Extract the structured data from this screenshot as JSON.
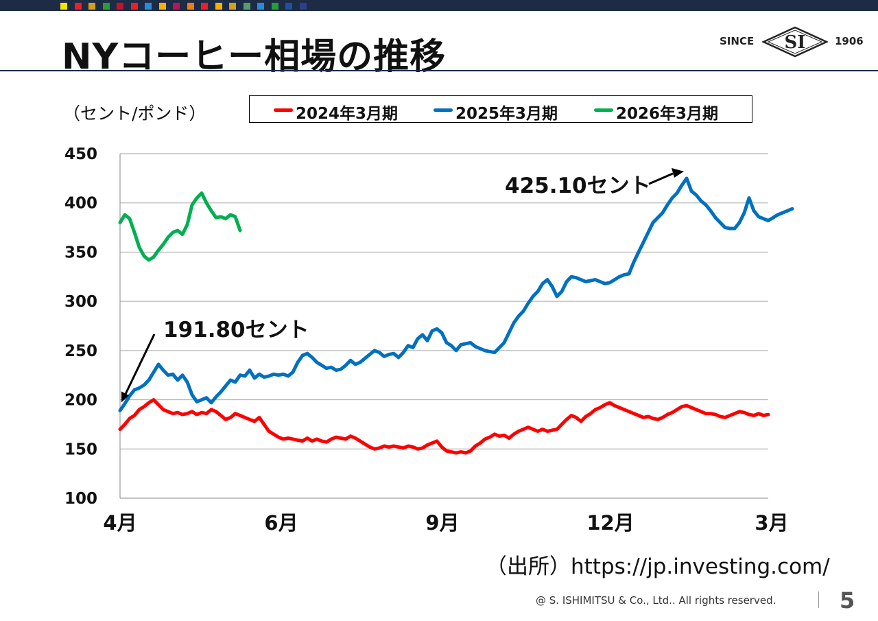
{
  "header": {
    "title": "NYコーヒー相場の推移",
    "swatches": [
      "#f2e600",
      "#e8202a",
      "#d4a017",
      "#2a9d3a",
      "#c8102e",
      "#e8202a",
      "#2b8ad8",
      "#f2b300",
      "#b0185a",
      "#ef7d16",
      "#e8202a",
      "#f2b300",
      "#d4a017",
      "#5b9a6a",
      "#2b8ad8",
      "#2a9d3a",
      "#1f4fa0",
      "#2b3f8a"
    ]
  },
  "logo": {
    "since": "SINCE",
    "mark": "SI",
    "year": "1906"
  },
  "chart_data": {
    "type": "line",
    "unit_label": "（セント/ポンド）",
    "ylim": [
      100,
      450
    ],
    "yticks": [
      "100",
      "150",
      "200",
      "250",
      "300",
      "350",
      "400",
      "450"
    ],
    "xticks": [
      "4月",
      "6月",
      "9月",
      "12月",
      "3月"
    ],
    "grid": true,
    "legend": "top",
    "series": [
      {
        "name": "2024年3月期",
        "color": "#ff0000",
        "values": [
          170,
          175,
          181,
          184,
          190,
          193,
          197,
          200,
          195,
          190,
          188,
          186,
          187,
          185,
          186,
          188,
          185,
          187,
          186,
          190,
          188,
          184,
          180,
          182,
          186,
          184,
          182,
          180,
          178,
          182,
          175,
          168,
          165,
          162,
          160,
          161,
          160,
          159,
          158,
          161,
          158,
          160,
          158,
          157,
          160,
          162,
          161,
          160,
          163,
          161,
          158,
          155,
          152,
          150,
          151,
          153,
          152,
          153,
          152,
          151,
          153,
          152,
          150,
          151,
          154,
          156,
          158,
          152,
          148,
          147,
          146,
          147,
          146,
          148,
          153,
          156,
          160,
          162,
          165,
          163,
          164,
          161,
          165,
          168,
          170,
          172,
          170,
          168,
          170,
          168,
          169,
          170,
          175,
          180,
          184,
          182,
          178,
          183,
          186,
          190,
          192,
          195,
          197,
          194,
          192,
          190,
          188,
          186,
          184,
          182,
          183,
          181,
          180,
          182,
          185,
          187,
          190,
          193,
          194,
          192,
          190,
          188,
          186,
          186,
          185,
          183,
          182,
          184,
          186,
          188,
          187,
          185,
          184,
          186,
          184,
          185
        ]
      },
      {
        "name": "2025年3月期",
        "color": "#0070c0",
        "values": [
          189,
          196,
          204,
          210,
          212,
          215,
          220,
          228,
          236,
          230,
          225,
          226,
          220,
          225,
          218,
          205,
          198,
          200,
          202,
          197,
          203,
          208,
          214,
          220,
          218,
          225,
          224,
          230,
          222,
          226,
          223,
          224,
          226,
          225,
          226,
          224,
          228,
          238,
          245,
          247,
          243,
          238,
          235,
          232,
          233,
          230,
          231,
          235,
          240,
          236,
          238,
          242,
          246,
          250,
          248,
          244,
          246,
          247,
          243,
          248,
          255,
          253,
          262,
          266,
          260,
          270,
          272,
          268,
          258,
          255,
          250,
          256,
          257,
          258,
          254,
          252,
          250,
          249,
          248,
          253,
          258,
          268,
          278,
          285,
          290,
          298,
          305,
          310,
          318,
          322,
          315,
          305,
          310,
          320,
          325,
          324,
          322,
          320,
          321,
          322,
          320,
          318,
          319,
          322,
          325,
          327,
          328,
          340,
          350,
          360,
          370,
          380,
          385,
          390,
          398,
          405,
          410,
          418,
          425,
          412,
          408,
          402,
          398,
          392,
          385,
          380,
          375,
          374,
          374,
          380,
          390,
          405,
          392,
          386,
          384,
          382,
          385,
          388,
          390,
          392,
          394
        ]
      },
      {
        "name": "2026年3月期",
        "color": "#00b050",
        "values": [
          380,
          388,
          384,
          370,
          355,
          346,
          342,
          345,
          352,
          358,
          365,
          370,
          372,
          368,
          378,
          398,
          405,
          410,
          400,
          392,
          385,
          386,
          384,
          388,
          386,
          372
        ]
      }
    ],
    "annotations": [
      {
        "text": "191.80セント",
        "value": 191.8,
        "series": "2025年3月期"
      },
      {
        "text": "425.10セント",
        "value": 425.1,
        "series": "2025年3月期"
      }
    ]
  },
  "source": "（出所）https://jp.investing.com/",
  "footer": {
    "copyright": "@ S. ISHIMITSU & Co., Ltd.. All rights reserved.",
    "page": "5"
  }
}
